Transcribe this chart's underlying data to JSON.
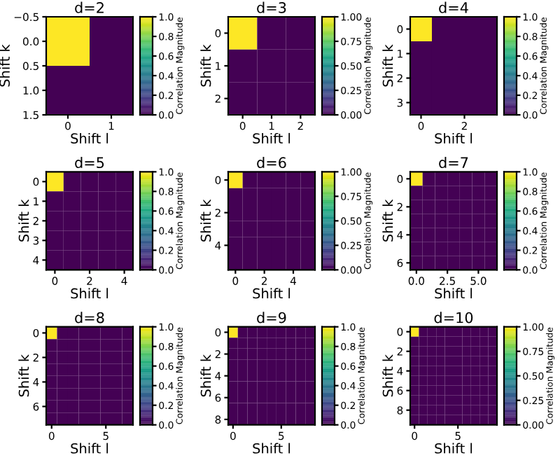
{
  "chart_data": [
    {
      "type": "heatmap",
      "title": "d=2",
      "xlabel": "Shift l",
      "ylabel": "Shift k",
      "clabel": "Correlation Magnitude",
      "x": [
        0,
        1
      ],
      "y": [
        0,
        1
      ],
      "cells": [
        [
          1,
          0
        ],
        [
          0,
          0
        ]
      ],
      "xlim": [
        -0.5,
        1.5
      ],
      "ylim": [
        1.5,
        -0.5
      ],
      "xticks": [
        0,
        1
      ],
      "yticks": [
        {
          "value": -0.5,
          "label": "−0.5"
        },
        {
          "value": 0,
          "label": "0.0"
        },
        {
          "value": 0.5,
          "label": "0.5"
        },
        {
          "value": 1,
          "label": "1.0"
        },
        {
          "value": 1.5,
          "label": "1.5"
        }
      ],
      "clim": [
        0,
        1
      ],
      "cticks": [
        {
          "value": 0,
          "label": "0.0"
        },
        {
          "value": 0.2,
          "label": "0.2"
        },
        {
          "value": 0.4,
          "label": "0.4"
        },
        {
          "value": 0.6,
          "label": "0.6"
        },
        {
          "value": 0.8,
          "label": "0.8"
        },
        {
          "value": 1,
          "label": "1.0"
        }
      ]
    },
    {
      "type": "heatmap",
      "title": "d=3",
      "xlabel": "Shift l",
      "ylabel": "Shift k",
      "clabel": "Correlation Magnitude",
      "x": [
        0,
        1,
        2
      ],
      "y": [
        0,
        1,
        2
      ],
      "cells": [
        [
          1,
          0,
          0
        ],
        [
          0,
          0,
          0
        ],
        [
          0,
          0,
          0
        ]
      ],
      "xlim": [
        -0.5,
        2.5
      ],
      "ylim": [
        2.5,
        -0.5
      ],
      "xticks": [
        0,
        1,
        2
      ],
      "yticks": [
        0,
        1,
        2
      ],
      "clim": [
        0,
        1
      ],
      "cticks": [
        {
          "value": 0,
          "label": "0.00"
        },
        {
          "value": 0.25,
          "label": "0.25"
        },
        {
          "value": 0.5,
          "label": "0.50"
        },
        {
          "value": 0.75,
          "label": "0.75"
        },
        {
          "value": 1,
          "label": "1.00"
        }
      ]
    },
    {
      "type": "heatmap",
      "title": "d=4",
      "xlabel": "Shift l",
      "ylabel": "Shift k",
      "clabel": "Correlation Magnitude",
      "x": [
        0,
        1,
        2,
        3
      ],
      "y": [
        0,
        1,
        2,
        3
      ],
      "cells": [
        [
          1,
          0,
          0,
          0
        ],
        [
          0,
          0,
          0,
          0
        ],
        [
          0,
          0,
          0,
          0
        ],
        [
          0,
          0,
          0,
          0
        ]
      ],
      "xlim": [
        -0.5,
        3.5
      ],
      "ylim": [
        3.5,
        -0.5
      ],
      "xticks": [
        0,
        2
      ],
      "yticks": [
        0,
        1,
        2,
        3
      ],
      "clim": [
        0,
        1
      ],
      "cticks": [
        {
          "value": 0,
          "label": "0.0"
        },
        {
          "value": 0.2,
          "label": "0.2"
        },
        {
          "value": 0.4,
          "label": "0.4"
        },
        {
          "value": 0.6,
          "label": "0.6"
        },
        {
          "value": 0.8,
          "label": "0.8"
        },
        {
          "value": 1,
          "label": "1.0"
        }
      ]
    },
    {
      "type": "heatmap",
      "title": "d=5",
      "xlabel": "Shift l",
      "ylabel": "Shift k",
      "clabel": "Correlation Magnitude",
      "x": [
        0,
        1,
        2,
        3,
        4
      ],
      "y": [
        0,
        1,
        2,
        3,
        4
      ],
      "cells": [
        [
          1,
          0,
          0,
          0,
          0
        ],
        [
          0,
          0,
          0,
          0,
          0
        ],
        [
          0,
          0,
          0,
          0,
          0
        ],
        [
          0,
          0,
          0,
          0,
          0
        ],
        [
          0,
          0,
          0,
          0,
          0
        ]
      ],
      "xlim": [
        -0.5,
        4.5
      ],
      "ylim": [
        4.5,
        -0.5
      ],
      "xticks": [
        0,
        2,
        4
      ],
      "yticks": [
        0,
        1,
        2,
        3,
        4
      ],
      "clim": [
        0,
        1
      ],
      "cticks": [
        {
          "value": 0,
          "label": "0.0"
        },
        {
          "value": 0.2,
          "label": "0.2"
        },
        {
          "value": 0.4,
          "label": "0.4"
        },
        {
          "value": 0.6,
          "label": "0.6"
        },
        {
          "value": 0.8,
          "label": "0.8"
        },
        {
          "value": 1,
          "label": "1.0"
        }
      ]
    },
    {
      "type": "heatmap",
      "title": "d=6",
      "xlabel": "Shift l",
      "ylabel": "Shift k",
      "clabel": "Correlation Magnitude",
      "x": [
        0,
        1,
        2,
        3,
        4,
        5
      ],
      "y": [
        0,
        1,
        2,
        3,
        4,
        5
      ],
      "cells": [
        [
          1,
          0,
          0,
          0,
          0,
          0
        ],
        [
          0,
          0,
          0,
          0,
          0,
          0
        ],
        [
          0,
          0,
          0,
          0,
          0,
          0
        ],
        [
          0,
          0,
          0,
          0,
          0,
          0
        ],
        [
          0,
          0,
          0,
          0,
          0,
          0
        ],
        [
          0,
          0,
          0,
          0,
          0,
          0
        ]
      ],
      "xlim": [
        -0.5,
        5.5
      ],
      "ylim": [
        5.5,
        -0.5
      ],
      "xticks": [
        0,
        2,
        4
      ],
      "yticks": [
        0,
        2,
        4
      ],
      "clim": [
        0,
        1
      ],
      "cticks": [
        {
          "value": 0,
          "label": "0.00"
        },
        {
          "value": 0.25,
          "label": "0.25"
        },
        {
          "value": 0.5,
          "label": "0.50"
        },
        {
          "value": 0.75,
          "label": "0.75"
        },
        {
          "value": 1,
          "label": "1.00"
        }
      ]
    },
    {
      "type": "heatmap",
      "title": "d=7",
      "xlabel": "Shift l",
      "ylabel": "Shift k",
      "clabel": "Correlation Magnitude",
      "x": [
        0,
        1,
        2,
        3,
        4,
        5,
        6
      ],
      "y": [
        0,
        1,
        2,
        3,
        4,
        5,
        6
      ],
      "cells": [
        [
          1,
          0,
          0,
          0,
          0,
          0,
          0
        ],
        [
          0,
          0,
          0,
          0,
          0,
          0,
          0
        ],
        [
          0,
          0,
          0,
          0,
          0,
          0,
          0
        ],
        [
          0,
          0,
          0,
          0,
          0,
          0,
          0
        ],
        [
          0,
          0,
          0,
          0,
          0,
          0,
          0
        ],
        [
          0,
          0,
          0,
          0,
          0,
          0,
          0
        ],
        [
          0,
          0,
          0,
          0,
          0,
          0,
          0
        ]
      ],
      "xlim": [
        -0.5,
        6.5
      ],
      "ylim": [
        6.5,
        -0.5
      ],
      "xticks": [
        {
          "value": 0,
          "label": "0.0"
        },
        {
          "value": 2.5,
          "label": "2.5"
        },
        {
          "value": 5,
          "label": "5.0"
        }
      ],
      "yticks": [
        0,
        2,
        4,
        6
      ],
      "clim": [
        0,
        1
      ],
      "cticks": [
        {
          "value": 0,
          "label": "0.0"
        },
        {
          "value": 0.2,
          "label": "0.2"
        },
        {
          "value": 0.4,
          "label": "0.4"
        },
        {
          "value": 0.6,
          "label": "0.6"
        },
        {
          "value": 0.8,
          "label": "0.8"
        },
        {
          "value": 1,
          "label": "1.0"
        }
      ]
    },
    {
      "type": "heatmap",
      "title": "d=8",
      "xlabel": "Shift l",
      "ylabel": "Shift k",
      "clabel": "Correlation Magnitude",
      "x": [
        0,
        1,
        2,
        3,
        4,
        5,
        6,
        7
      ],
      "y": [
        0,
        1,
        2,
        3,
        4,
        5,
        6,
        7
      ],
      "cells": [
        [
          1,
          0,
          0,
          0,
          0,
          0,
          0,
          0
        ],
        [
          0,
          0,
          0,
          0,
          0,
          0,
          0,
          0
        ],
        [
          0,
          0,
          0,
          0,
          0,
          0,
          0,
          0
        ],
        [
          0,
          0,
          0,
          0,
          0,
          0,
          0,
          0
        ],
        [
          0,
          0,
          0,
          0,
          0,
          0,
          0,
          0
        ],
        [
          0,
          0,
          0,
          0,
          0,
          0,
          0,
          0
        ],
        [
          0,
          0,
          0,
          0,
          0,
          0,
          0,
          0
        ],
        [
          0,
          0,
          0,
          0,
          0,
          0,
          0,
          0
        ]
      ],
      "xlim": [
        -0.5,
        7.5
      ],
      "ylim": [
        7.5,
        -0.5
      ],
      "xticks": [
        0,
        5
      ],
      "yticks": [
        0,
        2,
        4,
        6
      ],
      "clim": [
        0,
        1
      ],
      "cticks": [
        {
          "value": 0,
          "label": "0.0"
        },
        {
          "value": 0.2,
          "label": "0.2"
        },
        {
          "value": 0.4,
          "label": "0.4"
        },
        {
          "value": 0.6,
          "label": "0.6"
        },
        {
          "value": 0.8,
          "label": "0.8"
        },
        {
          "value": 1,
          "label": "1.0"
        }
      ]
    },
    {
      "type": "heatmap",
      "title": "d=9",
      "xlabel": "Shift l",
      "ylabel": "Shift k",
      "clabel": "Correlation Magnitude",
      "x": [
        0,
        1,
        2,
        3,
        4,
        5,
        6,
        7,
        8
      ],
      "y": [
        0,
        1,
        2,
        3,
        4,
        5,
        6,
        7,
        8
      ],
      "cells": [
        [
          1,
          0,
          0,
          0,
          0,
          0,
          0,
          0,
          0
        ],
        [
          0,
          0,
          0,
          0,
          0,
          0,
          0,
          0,
          0
        ],
        [
          0,
          0,
          0,
          0,
          0,
          0,
          0,
          0,
          0
        ],
        [
          0,
          0,
          0,
          0,
          0,
          0,
          0,
          0,
          0
        ],
        [
          0,
          0,
          0,
          0,
          0,
          0,
          0,
          0,
          0
        ],
        [
          0,
          0,
          0,
          0,
          0,
          0,
          0,
          0,
          0
        ],
        [
          0,
          0,
          0,
          0,
          0,
          0,
          0,
          0,
          0
        ],
        [
          0,
          0,
          0,
          0,
          0,
          0,
          0,
          0,
          0
        ],
        [
          0,
          0,
          0,
          0,
          0,
          0,
          0,
          0,
          0
        ]
      ],
      "xlim": [
        -0.5,
        8.5
      ],
      "ylim": [
        8.5,
        -0.5
      ],
      "xticks": [
        0,
        5
      ],
      "yticks": [
        0,
        2,
        4,
        6,
        8
      ],
      "clim": [
        0,
        1
      ],
      "cticks": [
        {
          "value": 0,
          "label": "0.0"
        },
        {
          "value": 0.2,
          "label": "0.2"
        },
        {
          "value": 0.4,
          "label": "0.4"
        },
        {
          "value": 0.6,
          "label": "0.6"
        },
        {
          "value": 0.8,
          "label": "0.8"
        },
        {
          "value": 1,
          "label": "1.0"
        }
      ]
    },
    {
      "type": "heatmap",
      "title": "d=10",
      "xlabel": "Shift l",
      "ylabel": "Shift k",
      "clabel": "Correlation Magnitude",
      "x": [
        0,
        1,
        2,
        3,
        4,
        5,
        6,
        7,
        8,
        9
      ],
      "y": [
        0,
        1,
        2,
        3,
        4,
        5,
        6,
        7,
        8,
        9
      ],
      "cells": [
        [
          1,
          0,
          0,
          0,
          0,
          0,
          0,
          0,
          0,
          0
        ],
        [
          0,
          0,
          0,
          0,
          0,
          0,
          0,
          0,
          0,
          0
        ],
        [
          0,
          0,
          0,
          0,
          0,
          0,
          0,
          0,
          0,
          0
        ],
        [
          0,
          0,
          0,
          0,
          0,
          0,
          0,
          0,
          0,
          0
        ],
        [
          0,
          0,
          0,
          0,
          0,
          0,
          0,
          0,
          0,
          0
        ],
        [
          0,
          0,
          0,
          0,
          0,
          0,
          0,
          0,
          0,
          0
        ],
        [
          0,
          0,
          0,
          0,
          0,
          0,
          0,
          0,
          0,
          0
        ],
        [
          0,
          0,
          0,
          0,
          0,
          0,
          0,
          0,
          0,
          0
        ],
        [
          0,
          0,
          0,
          0,
          0,
          0,
          0,
          0,
          0,
          0
        ],
        [
          0,
          0,
          0,
          0,
          0,
          0,
          0,
          0,
          0,
          0
        ]
      ],
      "xlim": [
        -0.5,
        9.5
      ],
      "ylim": [
        9.5,
        -0.5
      ],
      "xticks": [
        0,
        5
      ],
      "yticks": [
        0,
        2,
        4,
        6,
        8
      ],
      "clim": [
        0,
        1
      ],
      "cticks": [
        {
          "value": 0,
          "label": "0.00"
        },
        {
          "value": 0.25,
          "label": "0.25"
        },
        {
          "value": 0.5,
          "label": "0.50"
        },
        {
          "value": 0.75,
          "label": "0.75"
        },
        {
          "value": 1,
          "label": "1.00"
        }
      ]
    }
  ]
}
